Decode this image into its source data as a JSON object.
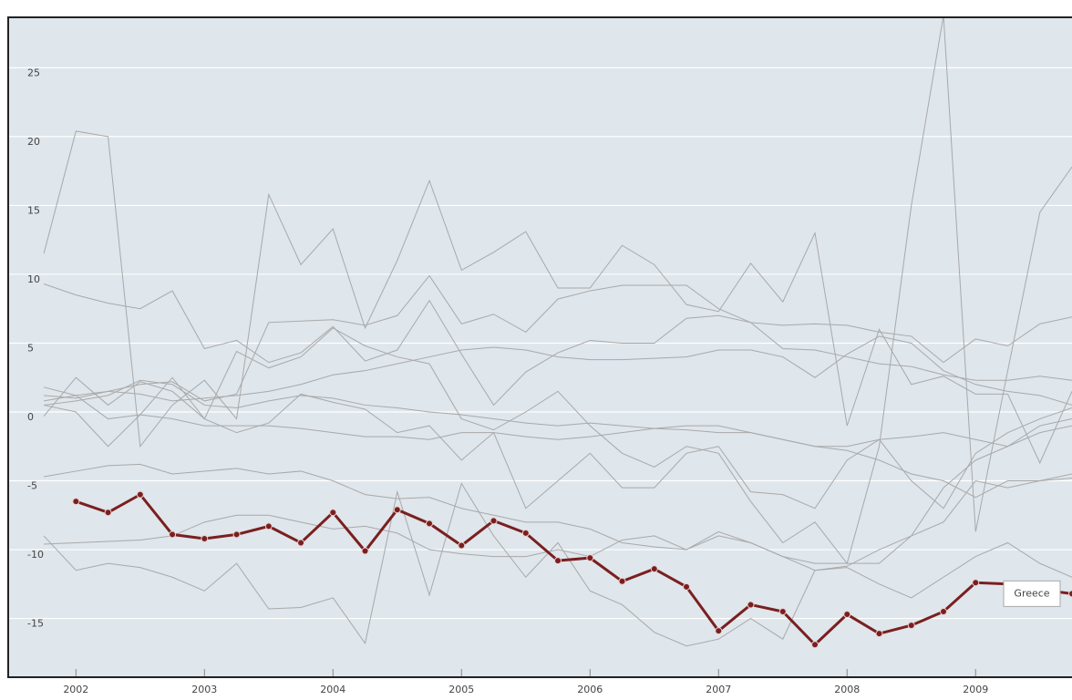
{
  "chart_data": {
    "type": "line",
    "x": [
      2001.75,
      2002,
      2002.25,
      2002.5,
      2002.75,
      2003,
      2003.25,
      2003.5,
      2003.75,
      2004,
      2004.25,
      2004.5,
      2004.75,
      2005,
      2005.25,
      2005.5,
      2005.75,
      2006,
      2006.25,
      2006.5,
      2006.75,
      2007,
      2007.25,
      2007.5,
      2007.75,
      2008,
      2008.25,
      2008.5,
      2008.75,
      2009,
      2009.25,
      2009.5,
      2009.75
    ],
    "xlim": [
      2001.48,
      2009.75
    ],
    "xticks": [
      2002,
      2003,
      2004,
      2005,
      2006,
      2007,
      2008,
      2009
    ],
    "ylim": [
      -19.2,
      28.6
    ],
    "yticks": [
      -15,
      -10,
      -5,
      0,
      5,
      10,
      15,
      20,
      25
    ],
    "grid": true,
    "series": [
      {
        "color": "#a9a9a9",
        "values": [
          11.5,
          20.4,
          20.0,
          -2.5,
          0.5,
          2.3,
          -0.5,
          15.8,
          10.7,
          13.3,
          6.1,
          11,
          16.8,
          10.3,
          11.6,
          13.1,
          9.0,
          9.0,
          12.1,
          10.7,
          7.8,
          7.3,
          10.8,
          8.0,
          13.0,
          -1.0,
          6.0,
          2.0,
          2.6,
          1.3,
          1.3,
          -3.7,
          1.5
        ]
      },
      {
        "color": "#a9a9a9",
        "values": [
          -0.3,
          2.5,
          0.5,
          2.2,
          1.5,
          -0.5,
          4.4,
          3.2,
          4.0,
          6.1,
          4.8,
          4.0,
          3.5,
          -0.5,
          -1.3,
          0.0,
          1.5,
          -1.0,
          -3.0,
          -4.0,
          -2.5,
          -3.0,
          -6.5,
          -9.5,
          -8.0,
          -11.0,
          -2.5,
          15.0,
          28.8,
          -8.7,
          3.0,
          14.5,
          17.8
        ]
      },
      {
        "color": "#a9a9a9",
        "values": [
          9.3,
          8.5,
          7.9,
          7.5,
          8.8,
          4.6,
          5.2,
          3.6,
          4.3,
          6.2,
          3.7,
          4.5,
          8.1,
          4.2,
          0.5,
          2.9,
          4.3,
          5.2,
          5.0,
          5.0,
          6.8,
          7.0,
          6.5,
          4.6,
          4.5,
          4.0,
          3.5,
          3.3,
          2.7,
          2.3,
          2.3,
          2.6,
          2.3
        ]
      },
      {
        "color": "#a9a9a9",
        "values": [
          1.2,
          1.0,
          1.5,
          2.0,
          2.2,
          0.8,
          1.3,
          6.5,
          6.6,
          6.7,
          6.3,
          7.0,
          9.9,
          6.4,
          7.1,
          5.8,
          8.2,
          8.8,
          9.2,
          9.2,
          9.2,
          7.5,
          6.5,
          6.3,
          6.4,
          6.3,
          5.8,
          5.5,
          3.6,
          5.3,
          4.8,
          6.4,
          6.9
        ]
      },
      {
        "color": "#a9a9a9",
        "values": [
          0.8,
          1.2,
          1.5,
          1.3,
          0.8,
          1.0,
          1.2,
          1.5,
          2.0,
          2.7,
          3.0,
          3.5,
          4.0,
          4.5,
          4.7,
          4.5,
          4.0,
          3.8,
          3.8,
          3.9,
          4.0,
          4.5,
          4.5,
          4.0,
          2.5,
          4.2,
          5.5,
          5.0,
          3.0,
          2.0,
          1.5,
          1.2,
          0.5
        ]
      },
      {
        "color": "#a9a9a9",
        "values": [
          1.8,
          1.2,
          -0.5,
          -0.2,
          -0.5,
          -1.0,
          -1.0,
          -1.0,
          -1.2,
          -1.5,
          -1.8,
          -1.8,
          -2.0,
          -1.5,
          -1.5,
          -1.8,
          -2.0,
          -1.8,
          -1.5,
          -1.2,
          -1.0,
          -1.0,
          -1.5,
          -2.0,
          -2.5,
          -2.5,
          -2.0,
          -1.8,
          -1.5,
          -2.0,
          -2.5,
          -1.0,
          -0.5
        ]
      },
      {
        "color": "#a9a9a9",
        "values": [
          0.5,
          0.8,
          1.2,
          2.3,
          2.0,
          0.5,
          0.3,
          0.8,
          1.2,
          1.0,
          0.5,
          0.3,
          0.0,
          -0.2,
          -0.5,
          -0.8,
          -1.0,
          -0.8,
          -1.0,
          -1.2,
          -1.3,
          -1.5,
          -1.5,
          -2.0,
          -2.5,
          -2.8,
          -3.5,
          -4.5,
          -5.0,
          -6.2,
          -5.0,
          -5.0,
          -4.5
        ]
      },
      {
        "color": "#a9a9a9",
        "values": [
          -4.7,
          -4.3,
          -3.9,
          -3.8,
          -4.5,
          -4.3,
          -4.1,
          -4.5,
          -4.3,
          -5.0,
          -6.0,
          -6.3,
          -6.2,
          -7.0,
          -7.5,
          -8.0,
          -8.0,
          -8.5,
          -9.5,
          -9.8,
          -10.0,
          -9.0,
          -9.5,
          -10.5,
          -11.5,
          -11.2,
          -10.0,
          -9.0,
          -8.0,
          -5.0,
          -5.5,
          -5.0,
          -4.8
        ]
      },
      {
        "color": "#a9a9a9",
        "values": [
          -9.6,
          -9.5,
          -9.4,
          -9.3,
          -9.0,
          -8.0,
          -7.5,
          -7.5,
          -8.0,
          -8.5,
          -8.3,
          -8.8,
          -10.0,
          -10.3,
          -10.5,
          -10.5,
          -10.0,
          -10.5,
          -9.3,
          -9.0,
          -10.0,
          -8.7,
          -9.5,
          -10.5,
          -11.0,
          -11.0,
          -11.0,
          -9.0,
          -5.5,
          -3.5,
          -2.5,
          -1.5,
          -1.0
        ]
      },
      {
        "color": "#a9a9a9",
        "values": [
          -9.0,
          -11.5,
          -11.0,
          -11.3,
          -12.0,
          -13.0,
          -11.0,
          -14.3,
          -14.2,
          -13.5,
          -16.8,
          -5.8,
          -13.3,
          -5.2,
          -9.0,
          -12.0,
          -9.5,
          -13.0,
          -14.0,
          -16.0,
          -17.0,
          -16.5,
          -15.0,
          -16.5,
          -11.5,
          -11.3,
          -12.5,
          -13.5,
          -12.0,
          -10.5,
          -9.5,
          -11.0,
          -12.0
        ]
      },
      {
        "color": "#a9a9a9",
        "values": [
          0.5,
          0.0,
          -2.5,
          -0.2,
          2.5,
          -0.5,
          -1.5,
          -0.8,
          1.3,
          0.7,
          0.2,
          -1.5,
          -1.0,
          -3.5,
          -1.5,
          -7.0,
          -5.0,
          -3.0,
          -5.5,
          -5.5,
          -3.0,
          -2.5,
          -5.8,
          -6.0,
          -7.0,
          -3.5,
          -2.0,
          -5.0,
          -7.0,
          -3.0,
          -1.5,
          -0.5,
          0.3
        ]
      },
      {
        "name": "Greece",
        "color": "#7a1f1f",
        "values": [
          null,
          -6.5,
          -7.3,
          -6.0,
          -8.9,
          -9.2,
          -8.9,
          -8.3,
          -9.5,
          -7.3,
          -10.1,
          -7.1,
          -8.1,
          -9.7,
          -7.9,
          -8.8,
          -10.8,
          -10.6,
          -12.3,
          -11.4,
          -12.7,
          -15.9,
          -14.0,
          -14.5,
          -16.9,
          -14.7,
          -16.1,
          -15.5,
          -14.5,
          -12.4,
          -12.5,
          -12.9,
          -13.2
        ]
      }
    ]
  }
}
